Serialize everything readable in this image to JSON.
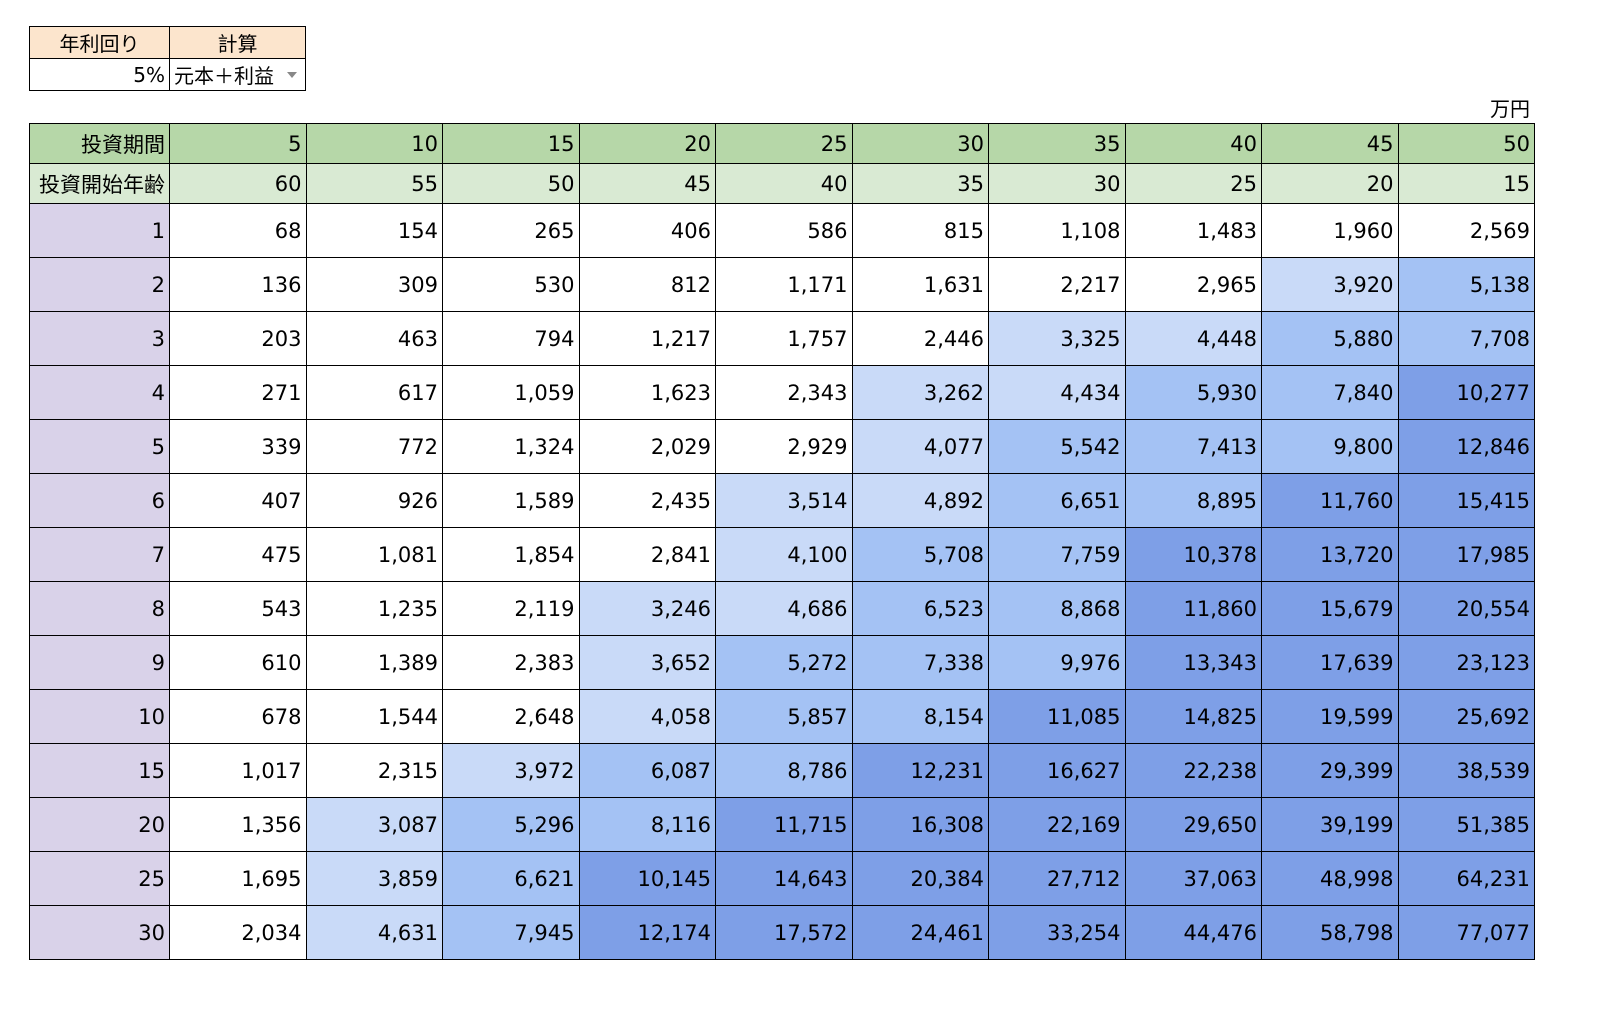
{
  "params": {
    "rate_header": "年利回り",
    "calc_header": "計算",
    "rate_value": "5%",
    "calc_value": "元本＋利益"
  },
  "unit": "万円",
  "grid": {
    "period_label": "投資期間",
    "age_label": "投資開始年齢",
    "periods": [
      "5",
      "10",
      "15",
      "20",
      "25",
      "30",
      "35",
      "40",
      "45",
      "50"
    ],
    "ages": [
      "60",
      "55",
      "50",
      "45",
      "40",
      "35",
      "30",
      "25",
      "20",
      "15"
    ],
    "rows": [
      {
        "label": "1",
        "cells": [
          "68",
          "154",
          "265",
          "406",
          "586",
          "815",
          "1,108",
          "1,483",
          "1,960",
          "2,569"
        ]
      },
      {
        "label": "2",
        "cells": [
          "136",
          "309",
          "530",
          "812",
          "1,171",
          "1,631",
          "2,217",
          "2,965",
          "3,920",
          "5,138"
        ]
      },
      {
        "label": "3",
        "cells": [
          "203",
          "463",
          "794",
          "1,217",
          "1,757",
          "2,446",
          "3,325",
          "4,448",
          "5,880",
          "7,708"
        ]
      },
      {
        "label": "4",
        "cells": [
          "271",
          "617",
          "1,059",
          "1,623",
          "2,343",
          "3,262",
          "4,434",
          "5,930",
          "7,840",
          "10,277"
        ]
      },
      {
        "label": "5",
        "cells": [
          "339",
          "772",
          "1,324",
          "2,029",
          "2,929",
          "4,077",
          "5,542",
          "7,413",
          "9,800",
          "12,846"
        ]
      },
      {
        "label": "6",
        "cells": [
          "407",
          "926",
          "1,589",
          "2,435",
          "3,514",
          "4,892",
          "6,651",
          "8,895",
          "11,760",
          "15,415"
        ]
      },
      {
        "label": "7",
        "cells": [
          "475",
          "1,081",
          "1,854",
          "2,841",
          "4,100",
          "5,708",
          "7,759",
          "10,378",
          "13,720",
          "17,985"
        ]
      },
      {
        "label": "8",
        "cells": [
          "543",
          "1,235",
          "2,119",
          "3,246",
          "4,686",
          "6,523",
          "8,868",
          "11,860",
          "15,679",
          "20,554"
        ]
      },
      {
        "label": "9",
        "cells": [
          "610",
          "1,389",
          "2,383",
          "3,652",
          "5,272",
          "7,338",
          "9,976",
          "13,343",
          "17,639",
          "23,123"
        ]
      },
      {
        "label": "10",
        "cells": [
          "678",
          "1,544",
          "2,648",
          "4,058",
          "5,857",
          "8,154",
          "11,085",
          "14,825",
          "19,599",
          "25,692"
        ]
      },
      {
        "label": "15",
        "cells": [
          "1,017",
          "2,315",
          "3,972",
          "6,087",
          "8,786",
          "12,231",
          "16,627",
          "22,238",
          "29,399",
          "38,539"
        ]
      },
      {
        "label": "20",
        "cells": [
          "1,356",
          "3,087",
          "5,296",
          "8,116",
          "11,715",
          "16,308",
          "22,169",
          "29,650",
          "39,199",
          "51,385"
        ]
      },
      {
        "label": "25",
        "cells": [
          "1,695",
          "3,859",
          "6,621",
          "10,145",
          "14,643",
          "20,384",
          "27,712",
          "37,063",
          "48,998",
          "64,231"
        ]
      },
      {
        "label": "30",
        "cells": [
          "2,034",
          "4,631",
          "7,945",
          "12,174",
          "17,572",
          "24,461",
          "33,254",
          "44,476",
          "58,798",
          "77,077"
        ]
      }
    ]
  },
  "colors": {
    "param_header_bg": "#fce5cd",
    "period_header_bg": "#b6d7a8",
    "age_header_bg": "#d9ead3",
    "row_label_bg": "#d9d2e9",
    "scale_level_0": "#ffffff",
    "scale_level_1": "#c9daf8",
    "scale_level_2": "#a4c2f4",
    "scale_level_3": "#7e9fe7"
  }
}
